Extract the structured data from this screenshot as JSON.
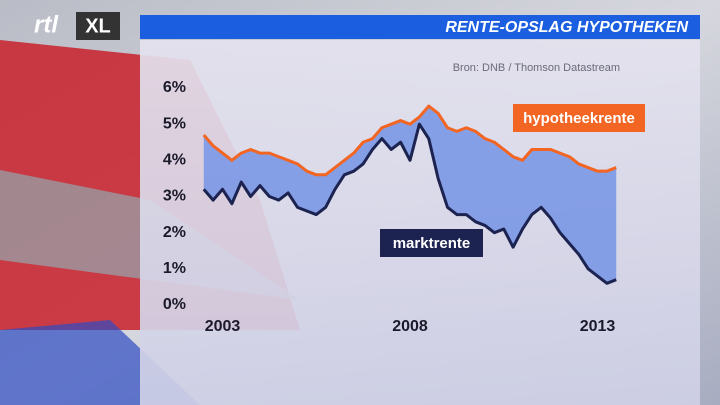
{
  "logo": {
    "brand": "rtl",
    "tag": "XL"
  },
  "chart_data": {
    "type": "line",
    "title": "RENTE-OPSLAG HYPOTHEKEN",
    "source": "Bron: DNB / Thomson Datastream",
    "x": [
      2002.5,
      2002.75,
      2003,
      2003.25,
      2003.5,
      2003.75,
      2004,
      2004.25,
      2004.5,
      2004.75,
      2005,
      2005.25,
      2005.5,
      2005.75,
      2006,
      2006.25,
      2006.5,
      2006.75,
      2007,
      2007.25,
      2007.5,
      2007.75,
      2008,
      2008.25,
      2008.5,
      2008.75,
      2009,
      2009.25,
      2009.5,
      2009.75,
      2010,
      2010.25,
      2010.5,
      2010.75,
      2011,
      2011.25,
      2011.5,
      2011.75,
      2012,
      2012.25,
      2012.5,
      2012.75,
      2013,
      2013.25,
      2013.5
    ],
    "series": [
      {
        "name": "hypotheekrente",
        "color": "#f26522",
        "values": [
          4.7,
          4.4,
          4.2,
          4.0,
          4.2,
          4.3,
          4.2,
          4.2,
          4.1,
          4.0,
          3.9,
          3.7,
          3.6,
          3.6,
          3.8,
          4.0,
          4.2,
          4.5,
          4.6,
          4.9,
          5.0,
          5.1,
          5.0,
          5.2,
          5.5,
          5.3,
          4.9,
          4.8,
          4.9,
          4.8,
          4.6,
          4.5,
          4.3,
          4.1,
          4.0,
          4.3,
          4.3,
          4.3,
          4.2,
          4.1,
          3.9,
          3.8,
          3.7,
          3.7,
          3.8
        ]
      },
      {
        "name": "marktrente",
        "color": "#1c2350",
        "values": [
          3.2,
          2.9,
          3.2,
          2.8,
          3.4,
          3.0,
          3.3,
          3.0,
          2.9,
          3.1,
          2.7,
          2.6,
          2.5,
          2.7,
          3.2,
          3.6,
          3.7,
          3.9,
          4.3,
          4.6,
          4.3,
          4.5,
          4.0,
          5.0,
          4.6,
          3.5,
          2.7,
          2.5,
          2.5,
          2.3,
          2.2,
          2.0,
          2.1,
          1.6,
          2.1,
          2.5,
          2.7,
          2.4,
          2.0,
          1.7,
          1.4,
          1.0,
          0.8,
          0.6,
          0.7
        ]
      }
    ],
    "fill_color": "#7b98e6",
    "xlim": [
      2002.4,
      2013.6
    ],
    "xticks": [
      2003,
      2008,
      2013
    ],
    "ylim": [
      0,
      6
    ],
    "yticks": [
      {
        "value": 0,
        "label": "0%"
      },
      {
        "value": 1,
        "label": "1%"
      },
      {
        "value": 2,
        "label": "2%"
      },
      {
        "value": 3,
        "label": "3%"
      },
      {
        "value": 4,
        "label": "4%"
      },
      {
        "value": 5,
        "label": "5%"
      },
      {
        "value": 6,
        "label": "6%"
      }
    ]
  }
}
